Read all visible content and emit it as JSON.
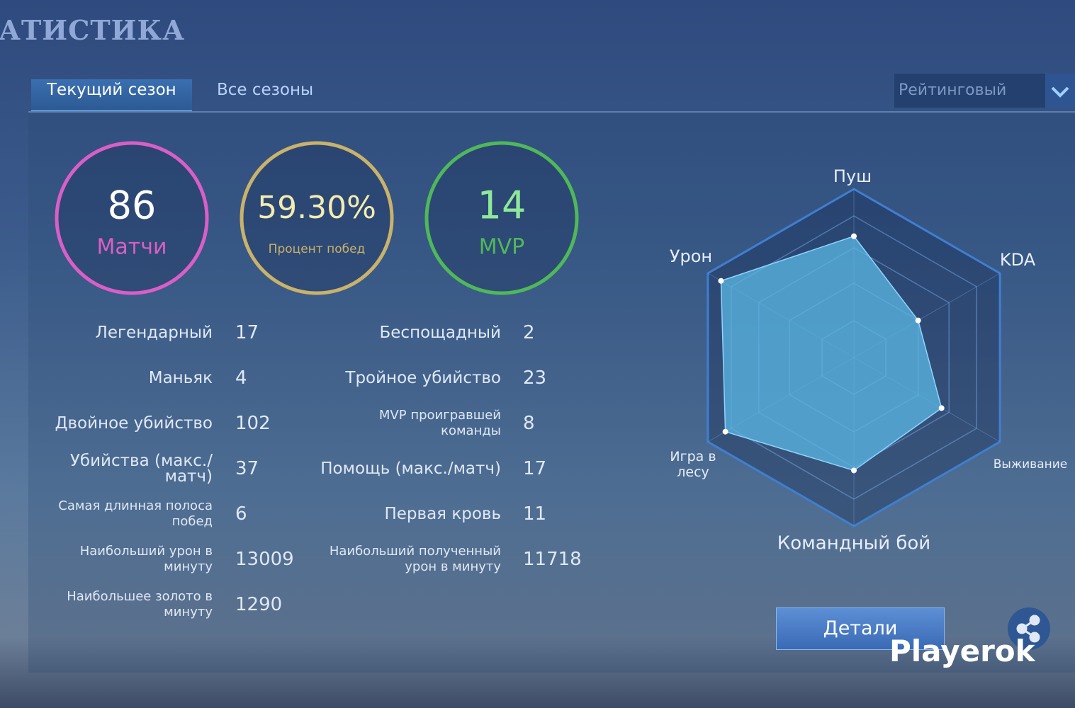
{
  "header": {
    "title": "АТИСТИКА"
  },
  "tabs": [
    "Текущий сезон",
    "Все сезоны"
  ],
  "mode_select": "Рейтинговый",
  "summary": [
    {
      "value": 86,
      "label": "Матчи",
      "color": "#d95fc6"
    },
    {
      "value": "59.30%",
      "label": "Процент побед",
      "color": "#c9b26a"
    },
    {
      "value": 14,
      "label": "MVP",
      "color": "#4fb85a"
    }
  ],
  "stats": {
    "left": [
      {
        "label": "Легендарный",
        "value": 17
      },
      {
        "label": "Маньяк",
        "value": 4
      },
      {
        "label": "Двойное убийство",
        "value": 102
      },
      {
        "label": "Убийства (макс./матч)",
        "value": 37
      },
      {
        "label": "Самая длинная полоса побед",
        "value": 6
      },
      {
        "label": "Наибольший урон в минуту",
        "value": 13009
      },
      {
        "label": "Наибольшее золото в минуту",
        "value": 1290
      }
    ],
    "right": [
      {
        "label": "Беспощадный",
        "value": 2
      },
      {
        "label": "Тройное убийство",
        "value": 23
      },
      {
        "label": "MVP проигравшей команды",
        "value": 8
      },
      {
        "label": "Помощь (макс./матч)",
        "value": 17
      },
      {
        "label": "Первая кровь",
        "value": 11
      },
      {
        "label": "Наибольший полученный урон в минуту",
        "value": 11718
      }
    ]
  },
  "radar": {
    "axes": [
      "Пуш",
      "KDA",
      "Выживание",
      "Командный бой",
      "Игра в лесу",
      "Урон"
    ],
    "values": [
      72,
      44,
      60,
      67,
      88,
      91
    ],
    "rlim": [
      0,
      100
    ],
    "color": "#5bb8e6"
  },
  "button": "Детали",
  "watermark": "Playerok"
}
